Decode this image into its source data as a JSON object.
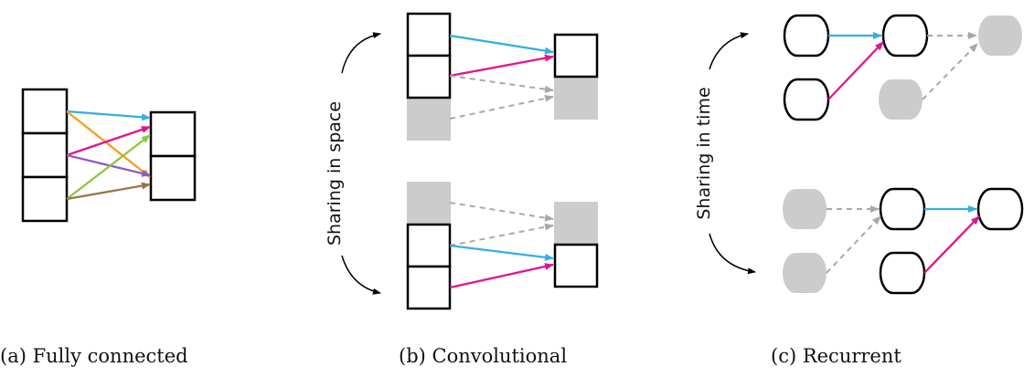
{
  "captions": {
    "fully_connected": "(a) Fully connected",
    "convolutional": "(b) Convolutional",
    "recurrent": "(c) Recurrent"
  },
  "labels": {
    "sharing_space": "Sharing in space",
    "sharing_time": "Sharing in time"
  },
  "colors": {
    "blue": "#35AEE2",
    "magenta": "#E5128F",
    "orange": "#F6A01A",
    "purple": "#8E5CC8",
    "green": "#8CC63E",
    "brown": "#9B7447",
    "gray_fill": "#CCCCCC",
    "gray_line": "#A8A8A8",
    "black": "#000000"
  }
}
